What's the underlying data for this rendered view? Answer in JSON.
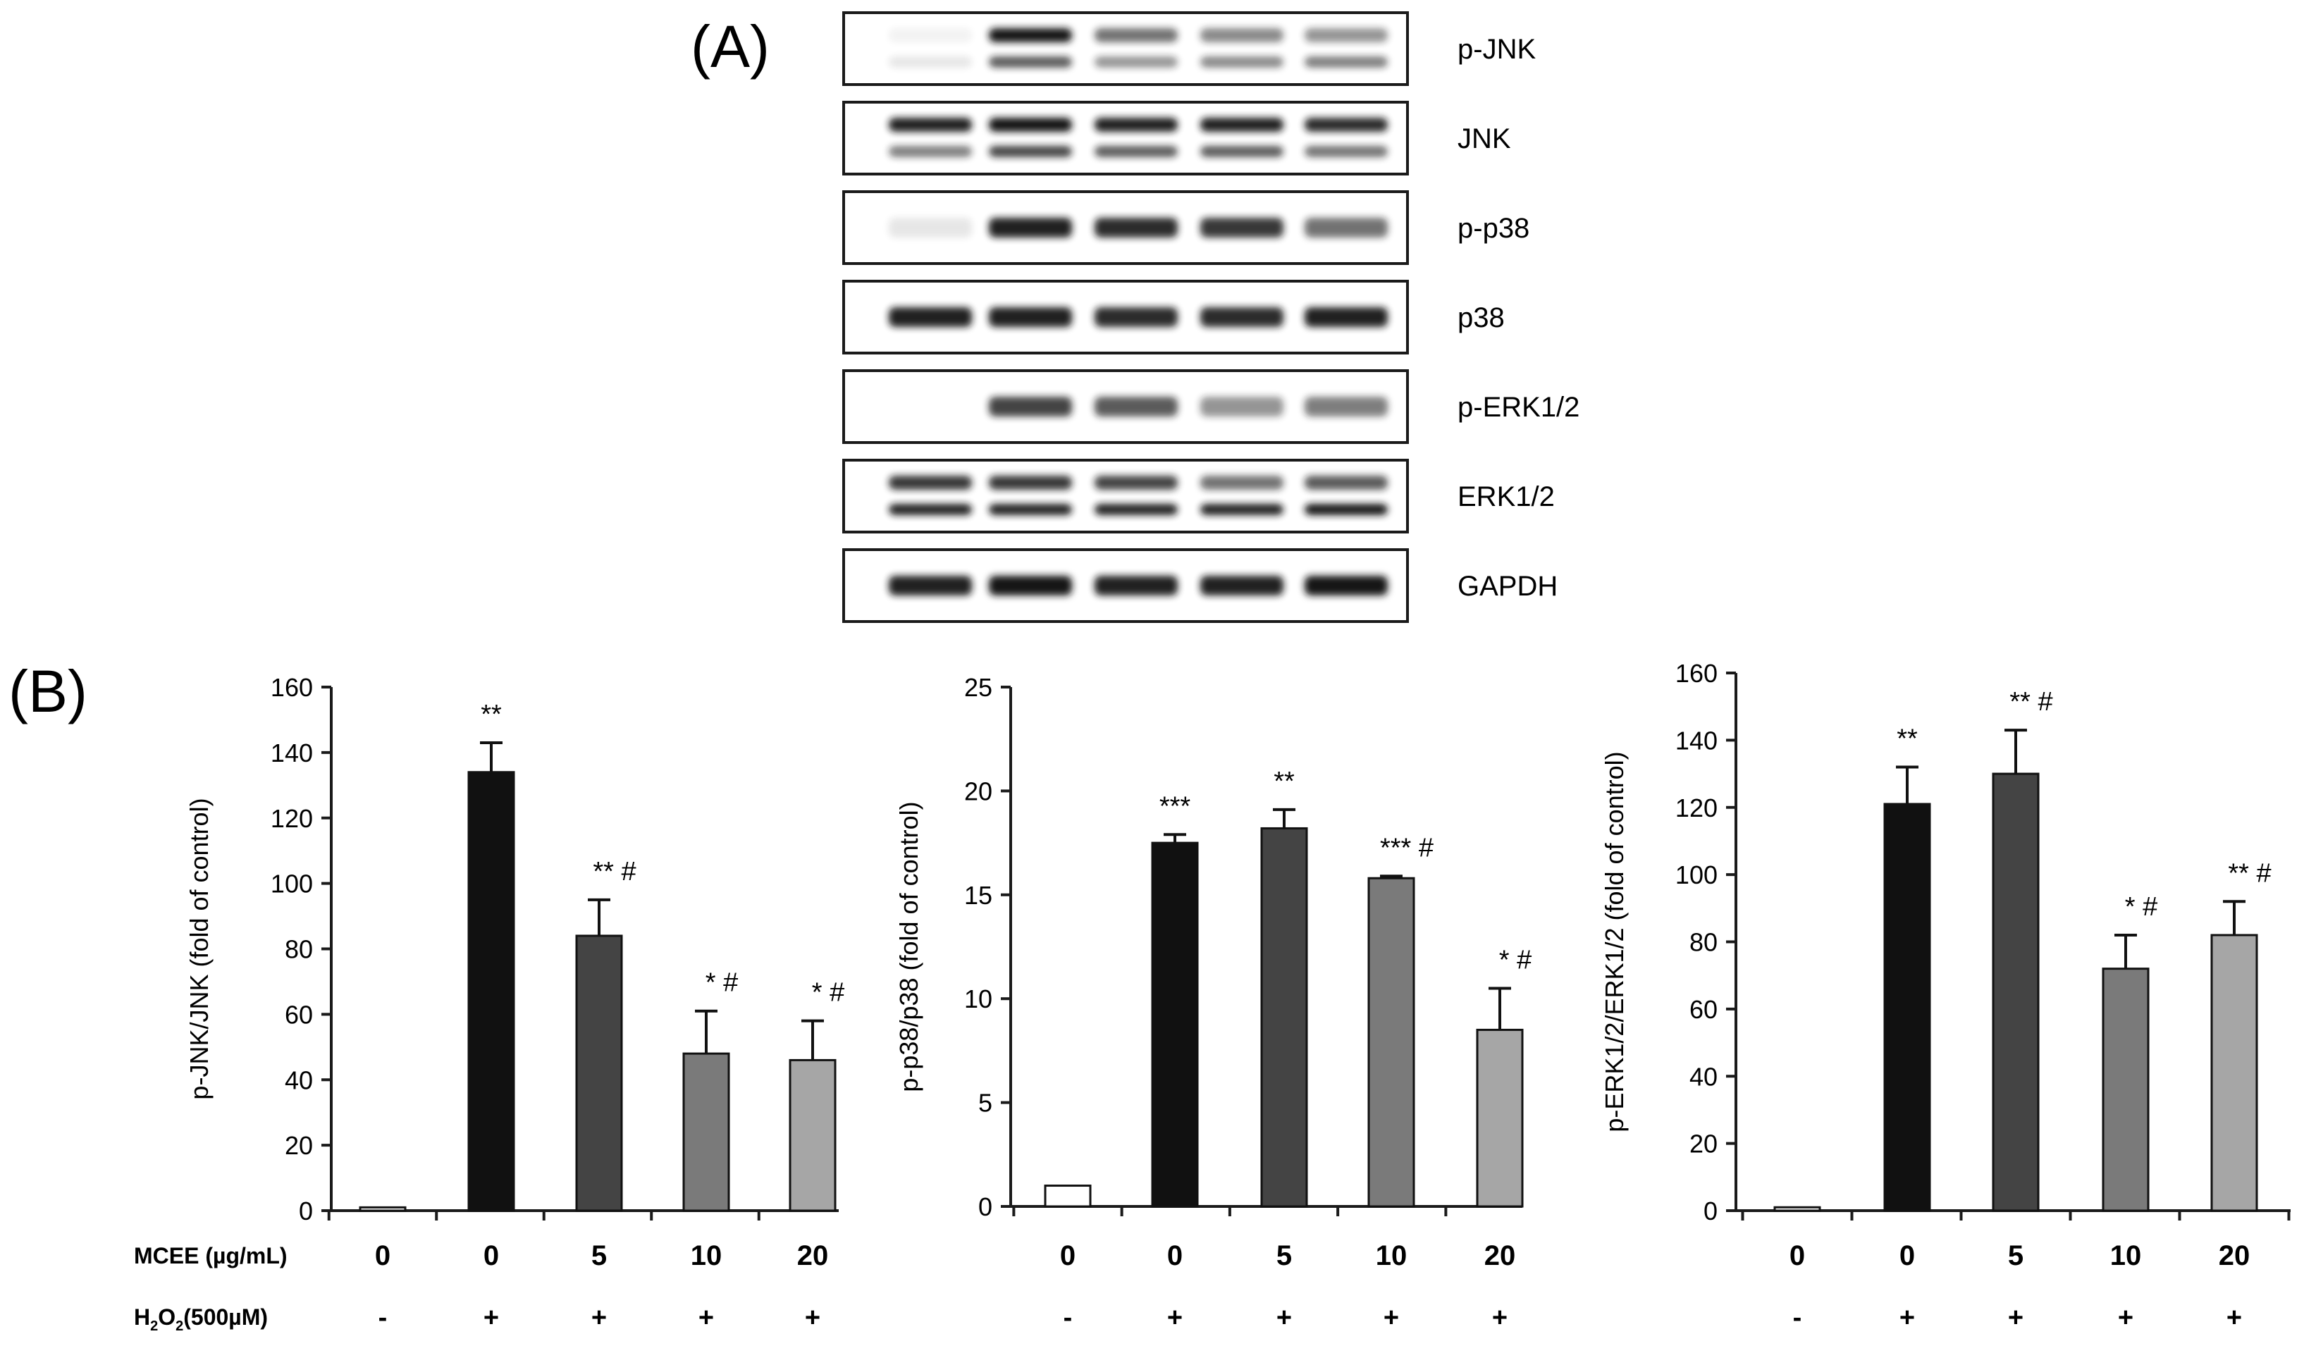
{
  "panel_a": {
    "label": "(A)",
    "blots": [
      {
        "label": "p-JNK",
        "bands": [
          [
            0.05,
            0.1
          ],
          [
            1.0,
            0.7
          ],
          [
            0.6,
            0.45
          ],
          [
            0.5,
            0.5
          ],
          [
            0.45,
            0.55
          ]
        ],
        "double": true
      },
      {
        "label": "JNK",
        "bands": [
          [
            0.95,
            0.55
          ],
          [
            1.0,
            0.8
          ],
          [
            0.95,
            0.7
          ],
          [
            0.95,
            0.7
          ],
          [
            0.9,
            0.6
          ]
        ],
        "double": true
      },
      {
        "label": "p-p38",
        "bands": [
          [
            0.1
          ],
          [
            0.95
          ],
          [
            0.9
          ],
          [
            0.85
          ],
          [
            0.6
          ]
        ],
        "double": false
      },
      {
        "label": "p38",
        "bands": [
          [
            0.95
          ],
          [
            0.95
          ],
          [
            0.9
          ],
          [
            0.9
          ],
          [
            0.95
          ]
        ],
        "double": false
      },
      {
        "label": "p-ERK1/2",
        "bands": [
          [
            0.02
          ],
          [
            0.8
          ],
          [
            0.7
          ],
          [
            0.45
          ],
          [
            0.55
          ]
        ],
        "double": false
      },
      {
        "label": "ERK1/2",
        "bands": [
          [
            0.85,
            0.95
          ],
          [
            0.85,
            0.95
          ],
          [
            0.8,
            0.95
          ],
          [
            0.6,
            0.95
          ],
          [
            0.7,
            1.0
          ]
        ],
        "double": true
      },
      {
        "label": "GAPDH",
        "bands": [
          [
            0.95
          ],
          [
            1.0
          ],
          [
            0.95
          ],
          [
            0.95
          ],
          [
            1.0
          ]
        ],
        "double": false
      }
    ]
  },
  "panel_b": {
    "label": "(B)",
    "row_labels": {
      "mcee": "MCEE (µg/mL)",
      "h2o2_prefix": "H",
      "h2o2_sub1": "2",
      "h2o2_mid": "O",
      "h2o2_sub2": "2",
      "h2o2_suffix": "(500µM)"
    },
    "mcee_values": [
      "0",
      "0",
      "5",
      "10",
      "20"
    ],
    "h2o2_values": [
      "-",
      "+",
      "+",
      "+",
      "+"
    ]
  },
  "colors": {
    "bars": [
      "#ffffff",
      "#111111",
      "#444444",
      "#7a7a7a",
      "#a6a6a6"
    ],
    "axis": "#1a1a1a",
    "band": "#151515"
  },
  "chart_data": [
    {
      "type": "bar",
      "categories": [
        "0",
        "0",
        "5",
        "10",
        "20"
      ],
      "ylabel": "p-JNK/JNK (fold of control)",
      "ylim": [
        0,
        160
      ],
      "yticks": [
        "0",
        "20",
        "40",
        "60",
        "80",
        "100",
        "120",
        "140",
        "160"
      ],
      "values": [
        1,
        134,
        84,
        48,
        46
      ],
      "errors": [
        0,
        9,
        11,
        13,
        12
      ],
      "annotations": [
        "",
        "**",
        "**   #",
        "*   #",
        "*   #"
      ]
    },
    {
      "type": "bar",
      "categories": [
        "0",
        "0",
        "5",
        "10",
        "20"
      ],
      "ylabel": "p-p38/p38 (fold of control)",
      "ylim": [
        0,
        25
      ],
      "yticks": [
        "0",
        "5",
        "10",
        "15",
        "20",
        "25"
      ],
      "values": [
        1,
        17.5,
        18.2,
        15.8,
        8.5
      ],
      "errors": [
        0,
        0.4,
        0.9,
        0.1,
        2.0
      ],
      "annotations": [
        "",
        "***",
        "**",
        "***   #",
        "*   #"
      ]
    },
    {
      "type": "bar",
      "categories": [
        "0",
        "0",
        "5",
        "10",
        "20"
      ],
      "ylabel": "p-ERK1/2/ERK1/2 (fold of control)",
      "ylim": [
        0,
        160
      ],
      "yticks": [
        "0",
        "20",
        "40",
        "60",
        "80",
        "100",
        "120",
        "140",
        "160"
      ],
      "values": [
        1,
        121,
        130,
        72,
        82
      ],
      "errors": [
        0,
        11,
        13,
        10,
        10
      ],
      "annotations": [
        "",
        "**",
        "**   #",
        "*   #",
        "**   #"
      ]
    }
  ]
}
